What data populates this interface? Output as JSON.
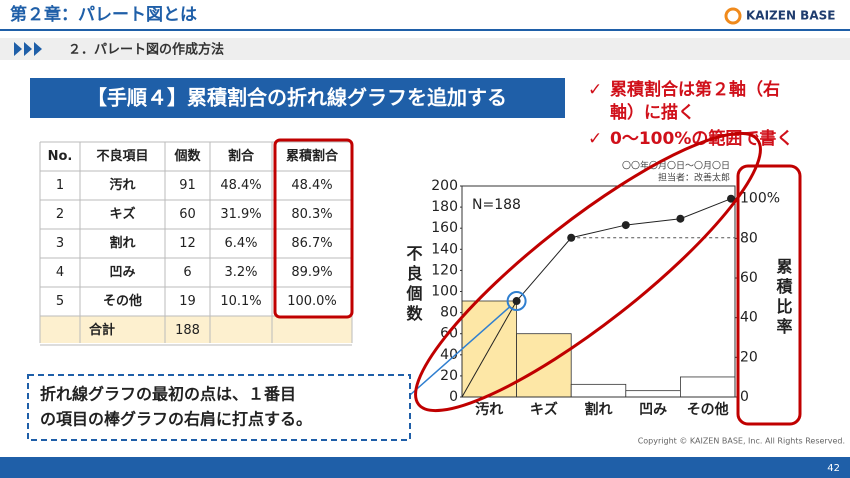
{
  "header": {
    "title": "第２章：パレート図とは",
    "logo": "KAIZEN BASE",
    "subtitle": "２．パレート図の作成方法"
  },
  "banner": "【手順４】累積割合の折れ線グラフを追加する",
  "checks": [
    "累積割合は第２軸（右",
    "軸）に描く",
    "0〜100%の範囲で書く"
  ],
  "table": {
    "header": [
      "No.",
      "不良項目",
      "個数",
      "割合",
      "累積割合"
    ],
    "rows": [
      [
        "1",
        "汚れ",
        "91",
        "48.4%",
        "48.4%"
      ],
      [
        "2",
        "キズ",
        "60",
        "31.9%",
        "80.3%"
      ],
      [
        "3",
        "割れ",
        "12",
        "6.4%",
        "86.7%"
      ],
      [
        "4",
        "凹み",
        "6",
        "3.2%",
        "89.9%"
      ],
      [
        "5",
        "その他",
        "19",
        "10.1%",
        "100.0%"
      ]
    ],
    "total": [
      "合計",
      "188"
    ]
  },
  "callout": [
    "折れ線グラフの最初の点は、１番目",
    "の項目の棒グラフの右肩に打点する。"
  ],
  "footer": {
    "copyright": "Copyright ©  KAIZEN BASE, Inc.  All Rights Reserved.",
    "page": "42"
  },
  "chart_data": {
    "type": "pareto",
    "period": "〇〇年〇月〇日〜〇月〇日",
    "owner": "担当者：改善太郎",
    "annotation": "N=188",
    "y_label": "不良個数",
    "y2_label": "累積比率",
    "categories": [
      "汚れ",
      "キズ",
      "割れ",
      "凹み",
      "その他"
    ],
    "series": [
      {
        "values": [
          91,
          60,
          12,
          6,
          19
        ],
        "colors": [
          "#fde7a6",
          "#fde7a6",
          "#ffffff",
          "#ffffff",
          "#ffffff"
        ]
      },
      {
        "values": [
          48.4,
          80.3,
          86.7,
          89.9,
          100
        ],
        "axis": "y2",
        "color": "#222222"
      }
    ],
    "ylim": [
      0,
      200
    ],
    "yticks": [
      0,
      20,
      40,
      60,
      80,
      100,
      120,
      140,
      160,
      180,
      200
    ],
    "y2lim": [
      0,
      106.4
    ],
    "y2ticks": [
      0,
      20,
      40,
      60,
      {
        "value": 80,
        "label": "80"
      },
      {
        "value": 100,
        "label": "100%"
      }
    ]
  }
}
